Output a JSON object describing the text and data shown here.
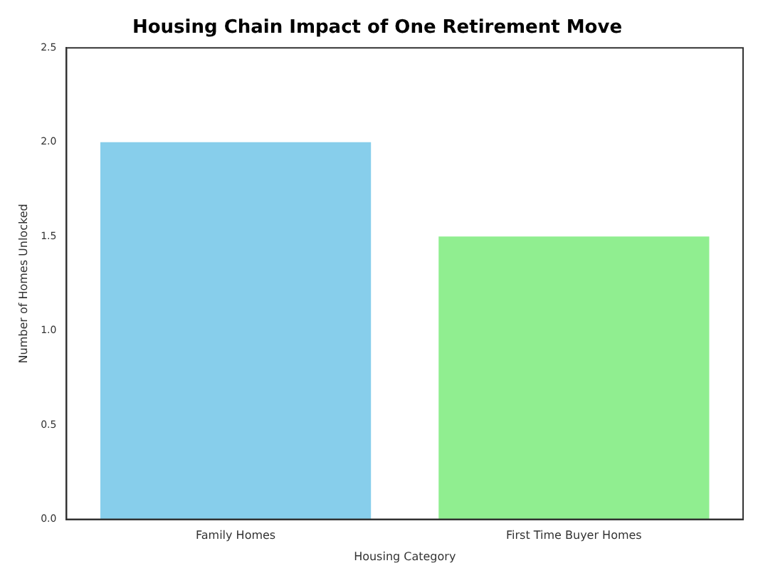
{
  "chart_data": {
    "type": "bar",
    "title": "Housing Chain Impact of One Retirement Move",
    "xlabel": "Housing Category",
    "ylabel": "Number of Homes Unlocked",
    "categories": [
      "Family Homes",
      "First Time Buyer Homes"
    ],
    "values": [
      2.0,
      1.5
    ],
    "colors": [
      "#87ceeb",
      "#90ee90"
    ],
    "ylim": [
      0,
      2.5
    ],
    "yticks": [
      {
        "value": 0,
        "label": "0.0"
      },
      {
        "value": 0.5,
        "label": "0.5"
      },
      {
        "value": 1,
        "label": "1.0"
      },
      {
        "value": 1.5,
        "label": "1.5"
      },
      {
        "value": 2,
        "label": "2.0"
      },
      {
        "value": 2.5,
        "label": "2.5"
      }
    ],
    "grid": false,
    "legend": false
  }
}
